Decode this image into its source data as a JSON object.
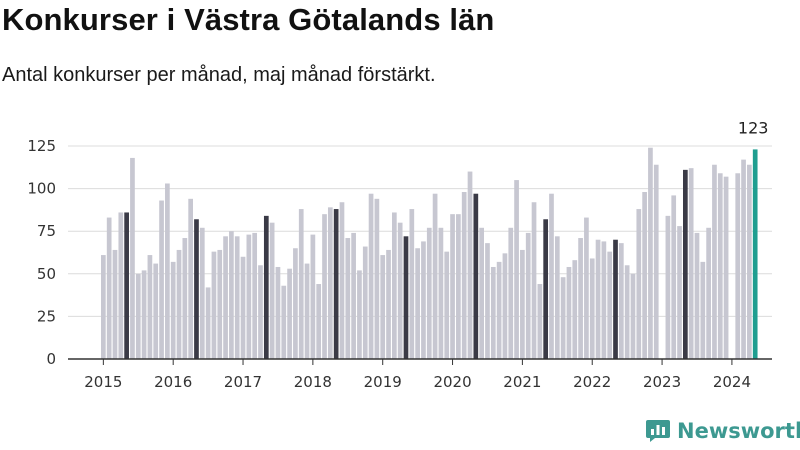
{
  "chart_data": {
    "type": "bar",
    "title": "Konkurser i Västra Götalands län",
    "subtitle": "Antal konkurser per månad, maj månad förstärkt.",
    "xlabel": "",
    "ylabel": "",
    "ylim": [
      0,
      125
    ],
    "y_ticks": [
      0,
      25,
      50,
      75,
      100,
      125
    ],
    "x_tick_labels": [
      "2015",
      "2016",
      "2017",
      "2018",
      "2019",
      "2020",
      "2021",
      "2022",
      "2023",
      "2024"
    ],
    "start": "2015-01",
    "values": [
      61,
      83,
      64,
      86,
      86,
      118,
      50,
      52,
      61,
      56,
      93,
      103,
      57,
      64,
      71,
      94,
      82,
      77,
      42,
      63,
      64,
      72,
      75,
      72,
      60,
      73,
      74,
      55,
      84,
      80,
      54,
      43,
      53,
      65,
      88,
      56,
      73,
      44,
      85,
      89,
      88,
      92,
      71,
      74,
      52,
      66,
      97,
      94,
      61,
      64,
      86,
      80,
      72,
      88,
      65,
      69,
      77,
      97,
      77,
      63,
      85,
      85,
      98,
      110,
      97,
      77,
      68,
      54,
      57,
      62,
      77,
      105,
      64,
      74,
      92,
      44,
      82,
      97,
      72,
      48,
      54,
      58,
      71,
      83,
      59,
      70,
      69,
      63,
      70,
      68,
      55,
      50,
      88,
      98,
      124,
      114,
      0,
      84,
      96,
      78,
      111,
      112,
      74,
      57,
      77,
      114,
      109,
      107,
      0,
      109,
      117,
      114,
      123
    ],
    "highlight_month": "maj",
    "annotation": "123",
    "grid": true,
    "colors": {
      "normal": "#c7c7d1",
      "may": "#3a3a46",
      "latest": "#1f9e90",
      "grid": "#dcdcdc",
      "axis": "#333333"
    }
  },
  "brand": {
    "name": "Newsworthy",
    "icon": "newsworthy-logo-icon"
  }
}
